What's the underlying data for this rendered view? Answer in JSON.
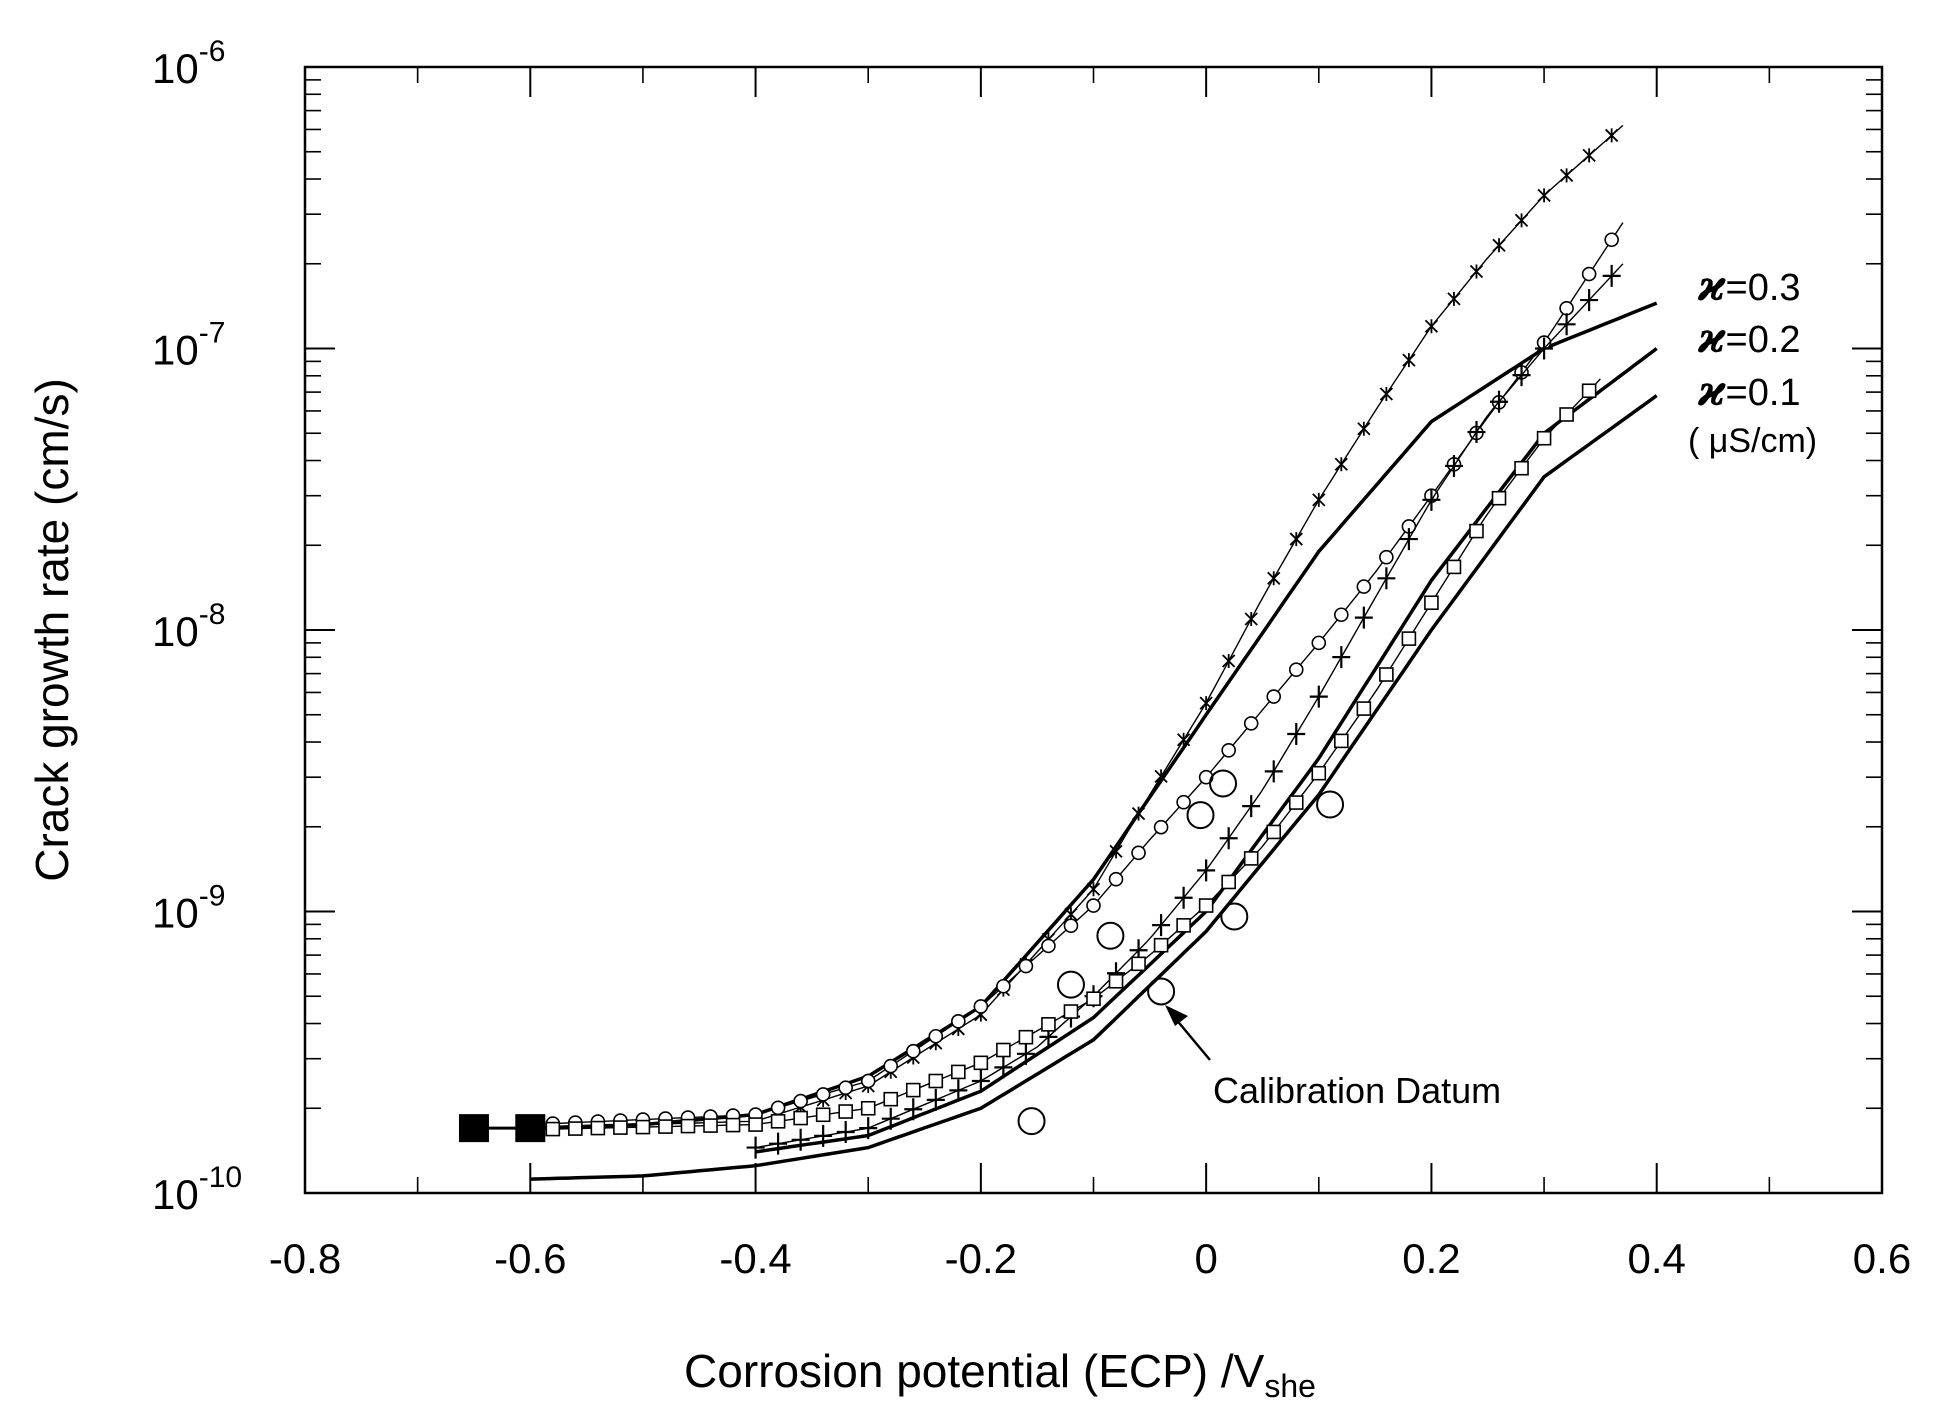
{
  "chart_data": {
    "type": "line",
    "title": "",
    "xlabel": "Corrosion potential (ECP) /V",
    "xlabel_subscript": "she",
    "ylabel": "Crack growth rate (cm/s)",
    "x_scale": "linear",
    "y_scale": "log",
    "xlim": [
      -0.8,
      0.6
    ],
    "ylim": [
      1e-10,
      1e-06
    ],
    "x_ticks": [
      -0.8,
      -0.6,
      -0.4,
      -0.2,
      0,
      0.2,
      0.4,
      0.6
    ],
    "x_tick_labels": [
      "-0.8",
      "-0.6",
      "-0.4",
      "-0.2",
      "0",
      "0.2",
      "0.4",
      "0.6"
    ],
    "y_ticks": [
      {
        "base": "10",
        "exp": "-10",
        "value": 1e-10
      },
      {
        "base": "10",
        "exp": "-9",
        "value": 1e-09
      },
      {
        "base": "10",
        "exp": "-8",
        "value": 1e-08
      },
      {
        "base": "10",
        "exp": "-7",
        "value": 1e-07
      },
      {
        "base": "10",
        "exp": "-6",
        "value": 1e-06
      }
    ],
    "series": [
      {
        "name": "κ=0.3 (solid)",
        "style": "line",
        "x": [
          -0.6,
          -0.5,
          -0.4,
          -0.3,
          -0.2,
          -0.1,
          0.0,
          0.1,
          0.2,
          0.3,
          0.4
        ],
        "y": [
          1.7e-10,
          1.75e-10,
          1.9e-10,
          2.6e-10,
          4.6e-10,
          1.3e-09,
          5e-09,
          1.9e-08,
          5.5e-08,
          1e-07,
          1.45e-07
        ]
      },
      {
        "name": "κ=0.2 (solid)",
        "style": "line",
        "x": [
          -0.4,
          -0.3,
          -0.2,
          -0.1,
          0.0,
          0.1,
          0.2,
          0.3,
          0.4
        ],
        "y": [
          1.4e-10,
          1.6e-10,
          2.3e-10,
          4.2e-10,
          1e-09,
          3.5e-09,
          1.5e-08,
          5e-08,
          1e-07
        ]
      },
      {
        "name": "κ=0.1 (solid)",
        "style": "line",
        "x": [
          -0.6,
          -0.5,
          -0.4,
          -0.3,
          -0.2,
          -0.1,
          0.0,
          0.1,
          0.2,
          0.3,
          0.4
        ],
        "y": [
          1.12e-10,
          1.15e-10,
          1.25e-10,
          1.45e-10,
          2e-10,
          3.5e-10,
          8.5e-10,
          2.6e-09,
          1e-08,
          3.5e-08,
          6.8e-08
        ]
      },
      {
        "name": "asterisk series",
        "style": "marker-x",
        "x": [
          -0.6,
          -0.4,
          -0.3,
          -0.2,
          -0.1,
          -0.05,
          0.0,
          0.05,
          0.1,
          0.15,
          0.2,
          0.25,
          0.3,
          0.37
        ],
        "y": [
          1.7e-10,
          1.8e-10,
          2.4e-10,
          4.3e-10,
          1.2e-09,
          2.6e-09,
          5.5e-09,
          1.3e-08,
          2.9e-08,
          6e-08,
          1.2e-07,
          2.1e-07,
          3.5e-07,
          6.2e-07
        ]
      },
      {
        "name": "small-circle series",
        "style": "marker-circle",
        "x": [
          -0.6,
          -0.4,
          -0.3,
          -0.2,
          -0.1,
          -0.05,
          0.0,
          0.05,
          0.1,
          0.15,
          0.2,
          0.25,
          0.3,
          0.37
        ],
        "y": [
          1.75e-10,
          1.9e-10,
          2.5e-10,
          4.6e-10,
          1.05e-09,
          1.8e-09,
          3e-09,
          5.2e-09,
          9e-09,
          1.6e-08,
          3e-08,
          5.7e-08,
          1.05e-07,
          2.8e-07
        ]
      },
      {
        "name": "plus series",
        "style": "marker-plus",
        "x": [
          -0.4,
          -0.3,
          -0.2,
          -0.15,
          -0.1,
          -0.05,
          0.0,
          0.05,
          0.1,
          0.15,
          0.2,
          0.25,
          0.3,
          0.37
        ],
        "y": [
          1.45e-10,
          1.7e-10,
          2.5e-10,
          3.3e-10,
          5e-10,
          8e-10,
          1.4e-09,
          2.7e-09,
          5.8e-09,
          1.3e-08,
          2.9e-08,
          5.8e-08,
          1e-07,
          2e-07
        ]
      },
      {
        "name": "square series",
        "style": "marker-square",
        "x": [
          -0.6,
          -0.4,
          -0.3,
          -0.2,
          -0.1,
          -0.05,
          0.0,
          0.05,
          0.1,
          0.15,
          0.2,
          0.25,
          0.3,
          0.35
        ],
        "y": [
          1.68e-10,
          1.75e-10,
          2e-10,
          2.9e-10,
          4.9e-10,
          7e-10,
          1.05e-09,
          1.7e-09,
          3.1e-09,
          6e-09,
          1.25e-08,
          2.6e-08,
          4.8e-08,
          7.8e-08
        ]
      },
      {
        "name": "filled squares",
        "style": "marker-filled-square",
        "x": [
          -0.65,
          -0.6
        ],
        "y": [
          1.7e-10,
          1.7e-10
        ]
      },
      {
        "name": "measured data",
        "style": "marker-open-circle",
        "x": [
          -0.155,
          -0.12,
          -0.085,
          -0.04,
          -0.005,
          0.015,
          0.025,
          0.11
        ],
        "y": [
          1.8e-10,
          5.5e-10,
          8.2e-10,
          5.2e-10,
          2.2e-09,
          2.85e-09,
          9.6e-10,
          2.4e-09
        ]
      }
    ],
    "labels": [
      {
        "symbol": "ϰ",
        "text": "=0.3"
      },
      {
        "symbol": "ϰ",
        "text": "=0.2"
      },
      {
        "symbol": "ϰ",
        "text": "=0.1"
      }
    ],
    "unit_label": "( μS/cm)",
    "annotation": {
      "text": "Calibration Datum",
      "x": -0.04,
      "y": 5.2e-10
    },
    "grid": false
  }
}
